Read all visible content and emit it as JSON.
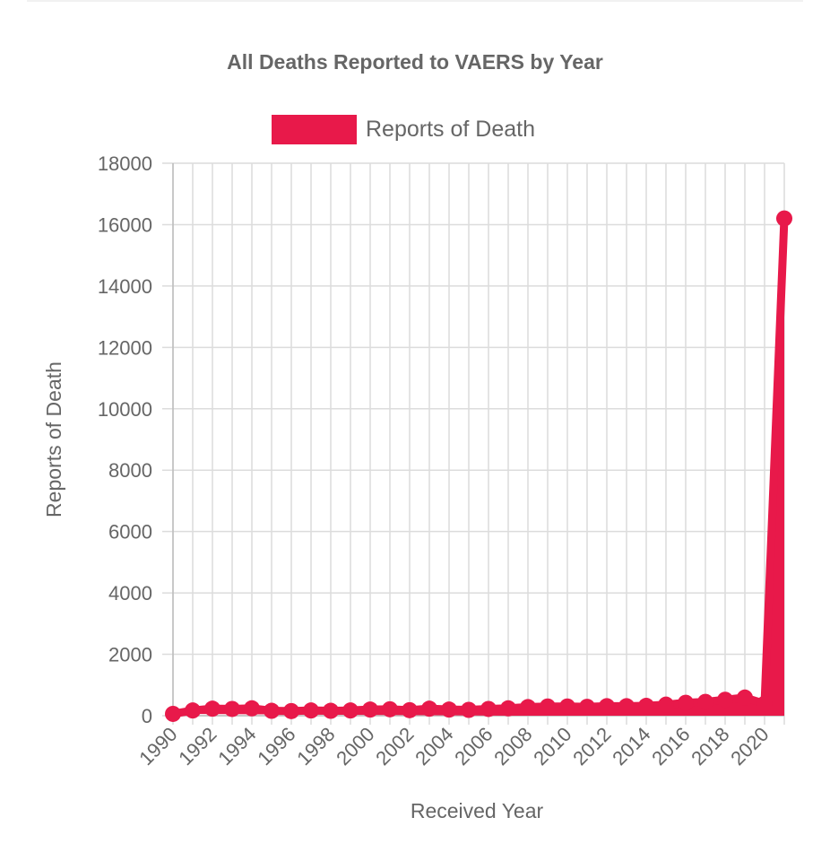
{
  "chart_data": {
    "type": "line",
    "title": "All Deaths Reported to VAERS by Year",
    "xlabel": "Received Year",
    "ylabel": "Reports of Death",
    "legend": {
      "position": "top",
      "entries": [
        "Reports of Death"
      ]
    },
    "ylim": [
      0,
      18000
    ],
    "yticks": [
      0,
      2000,
      4000,
      6000,
      8000,
      10000,
      12000,
      14000,
      16000,
      18000
    ],
    "x": [
      1990,
      1991,
      1992,
      1993,
      1994,
      1995,
      1996,
      1997,
      1998,
      1999,
      2000,
      2001,
      2002,
      2003,
      2004,
      2005,
      2006,
      2007,
      2008,
      2009,
      2010,
      2011,
      2012,
      2013,
      2014,
      2015,
      2016,
      2017,
      2018,
      2019,
      2020,
      2021
    ],
    "xtick_labels": [
      "1990",
      "1992",
      "1994",
      "1996",
      "1998",
      "2000",
      "2002",
      "2004",
      "2006",
      "2008",
      "2010",
      "2012",
      "2014",
      "2016",
      "2018",
      "2020"
    ],
    "series": [
      {
        "name": "Reports of Death",
        "color": "#e8194a",
        "values": [
          60,
          170,
          230,
          220,
          240,
          160,
          150,
          170,
          160,
          170,
          200,
          210,
          180,
          230,
          200,
          190,
          220,
          240,
          280,
          300,
          300,
          290,
          310,
          310,
          320,
          360,
          420,
          450,
          520,
          590,
          390,
          16200
        ]
      }
    ],
    "grid": true
  }
}
